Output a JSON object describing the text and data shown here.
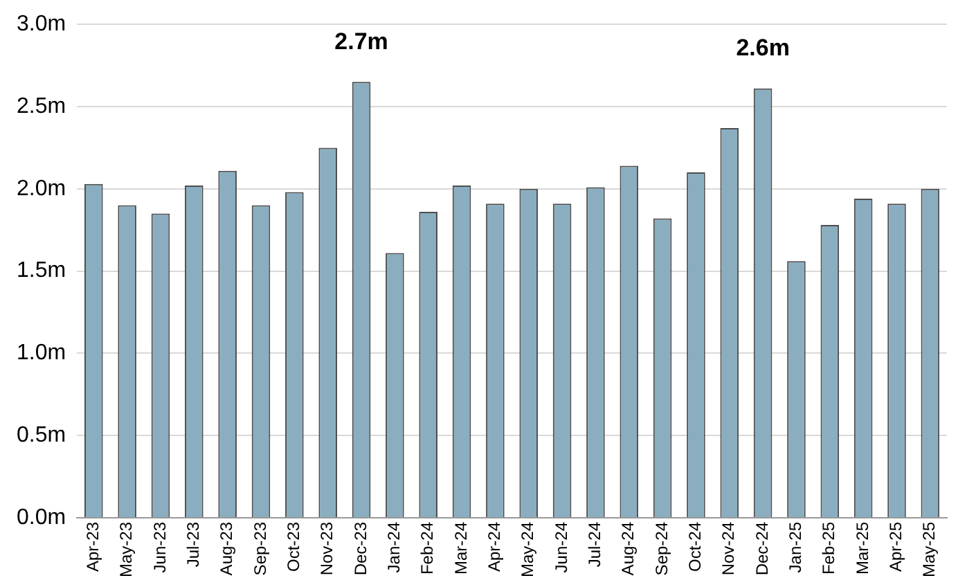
{
  "chart_data": {
    "type": "bar",
    "categories": [
      "Apr-23",
      "May-23",
      "Jun-23",
      "Jul-23",
      "Aug-23",
      "Sep-23",
      "Oct-23",
      "Nov-23",
      "Dec-23",
      "Jan-24",
      "Feb-24",
      "Mar-24",
      "Apr-24",
      "May-24",
      "Jun-24",
      "Jul-24",
      "Aug-24",
      "Sep-24",
      "Oct-24",
      "Nov-24",
      "Dec-24",
      "Jan-25",
      "Feb-25",
      "Mar-25",
      "Apr-25",
      "May-25"
    ],
    "values": [
      2.03,
      1.9,
      1.85,
      2.02,
      2.11,
      1.9,
      1.98,
      2.25,
      2.65,
      1.61,
      1.86,
      2.02,
      1.91,
      2.0,
      1.91,
      2.01,
      2.14,
      1.82,
      2.1,
      2.37,
      2.61,
      1.56,
      1.78,
      1.94,
      1.91,
      2.0
    ],
    "value_labels": [
      null,
      null,
      null,
      null,
      null,
      null,
      null,
      null,
      "2.7m",
      null,
      null,
      null,
      null,
      null,
      null,
      null,
      null,
      null,
      null,
      null,
      "2.6m",
      null,
      null,
      null,
      null,
      null
    ],
    "color": "#8aaec0",
    "ylim": [
      0,
      3
    ],
    "yticks": [
      {
        "value": 0,
        "label": "0.0m"
      },
      {
        "value": 0.5,
        "label": "0.5m"
      },
      {
        "value": 1,
        "label": "1.0m"
      },
      {
        "value": 1.5,
        "label": "1.5m"
      },
      {
        "value": 2,
        "label": "2.0m"
      },
      {
        "value": 2.5,
        "label": "2.5m"
      },
      {
        "value": 3,
        "label": "3.0m"
      }
    ],
    "grid": "y"
  }
}
